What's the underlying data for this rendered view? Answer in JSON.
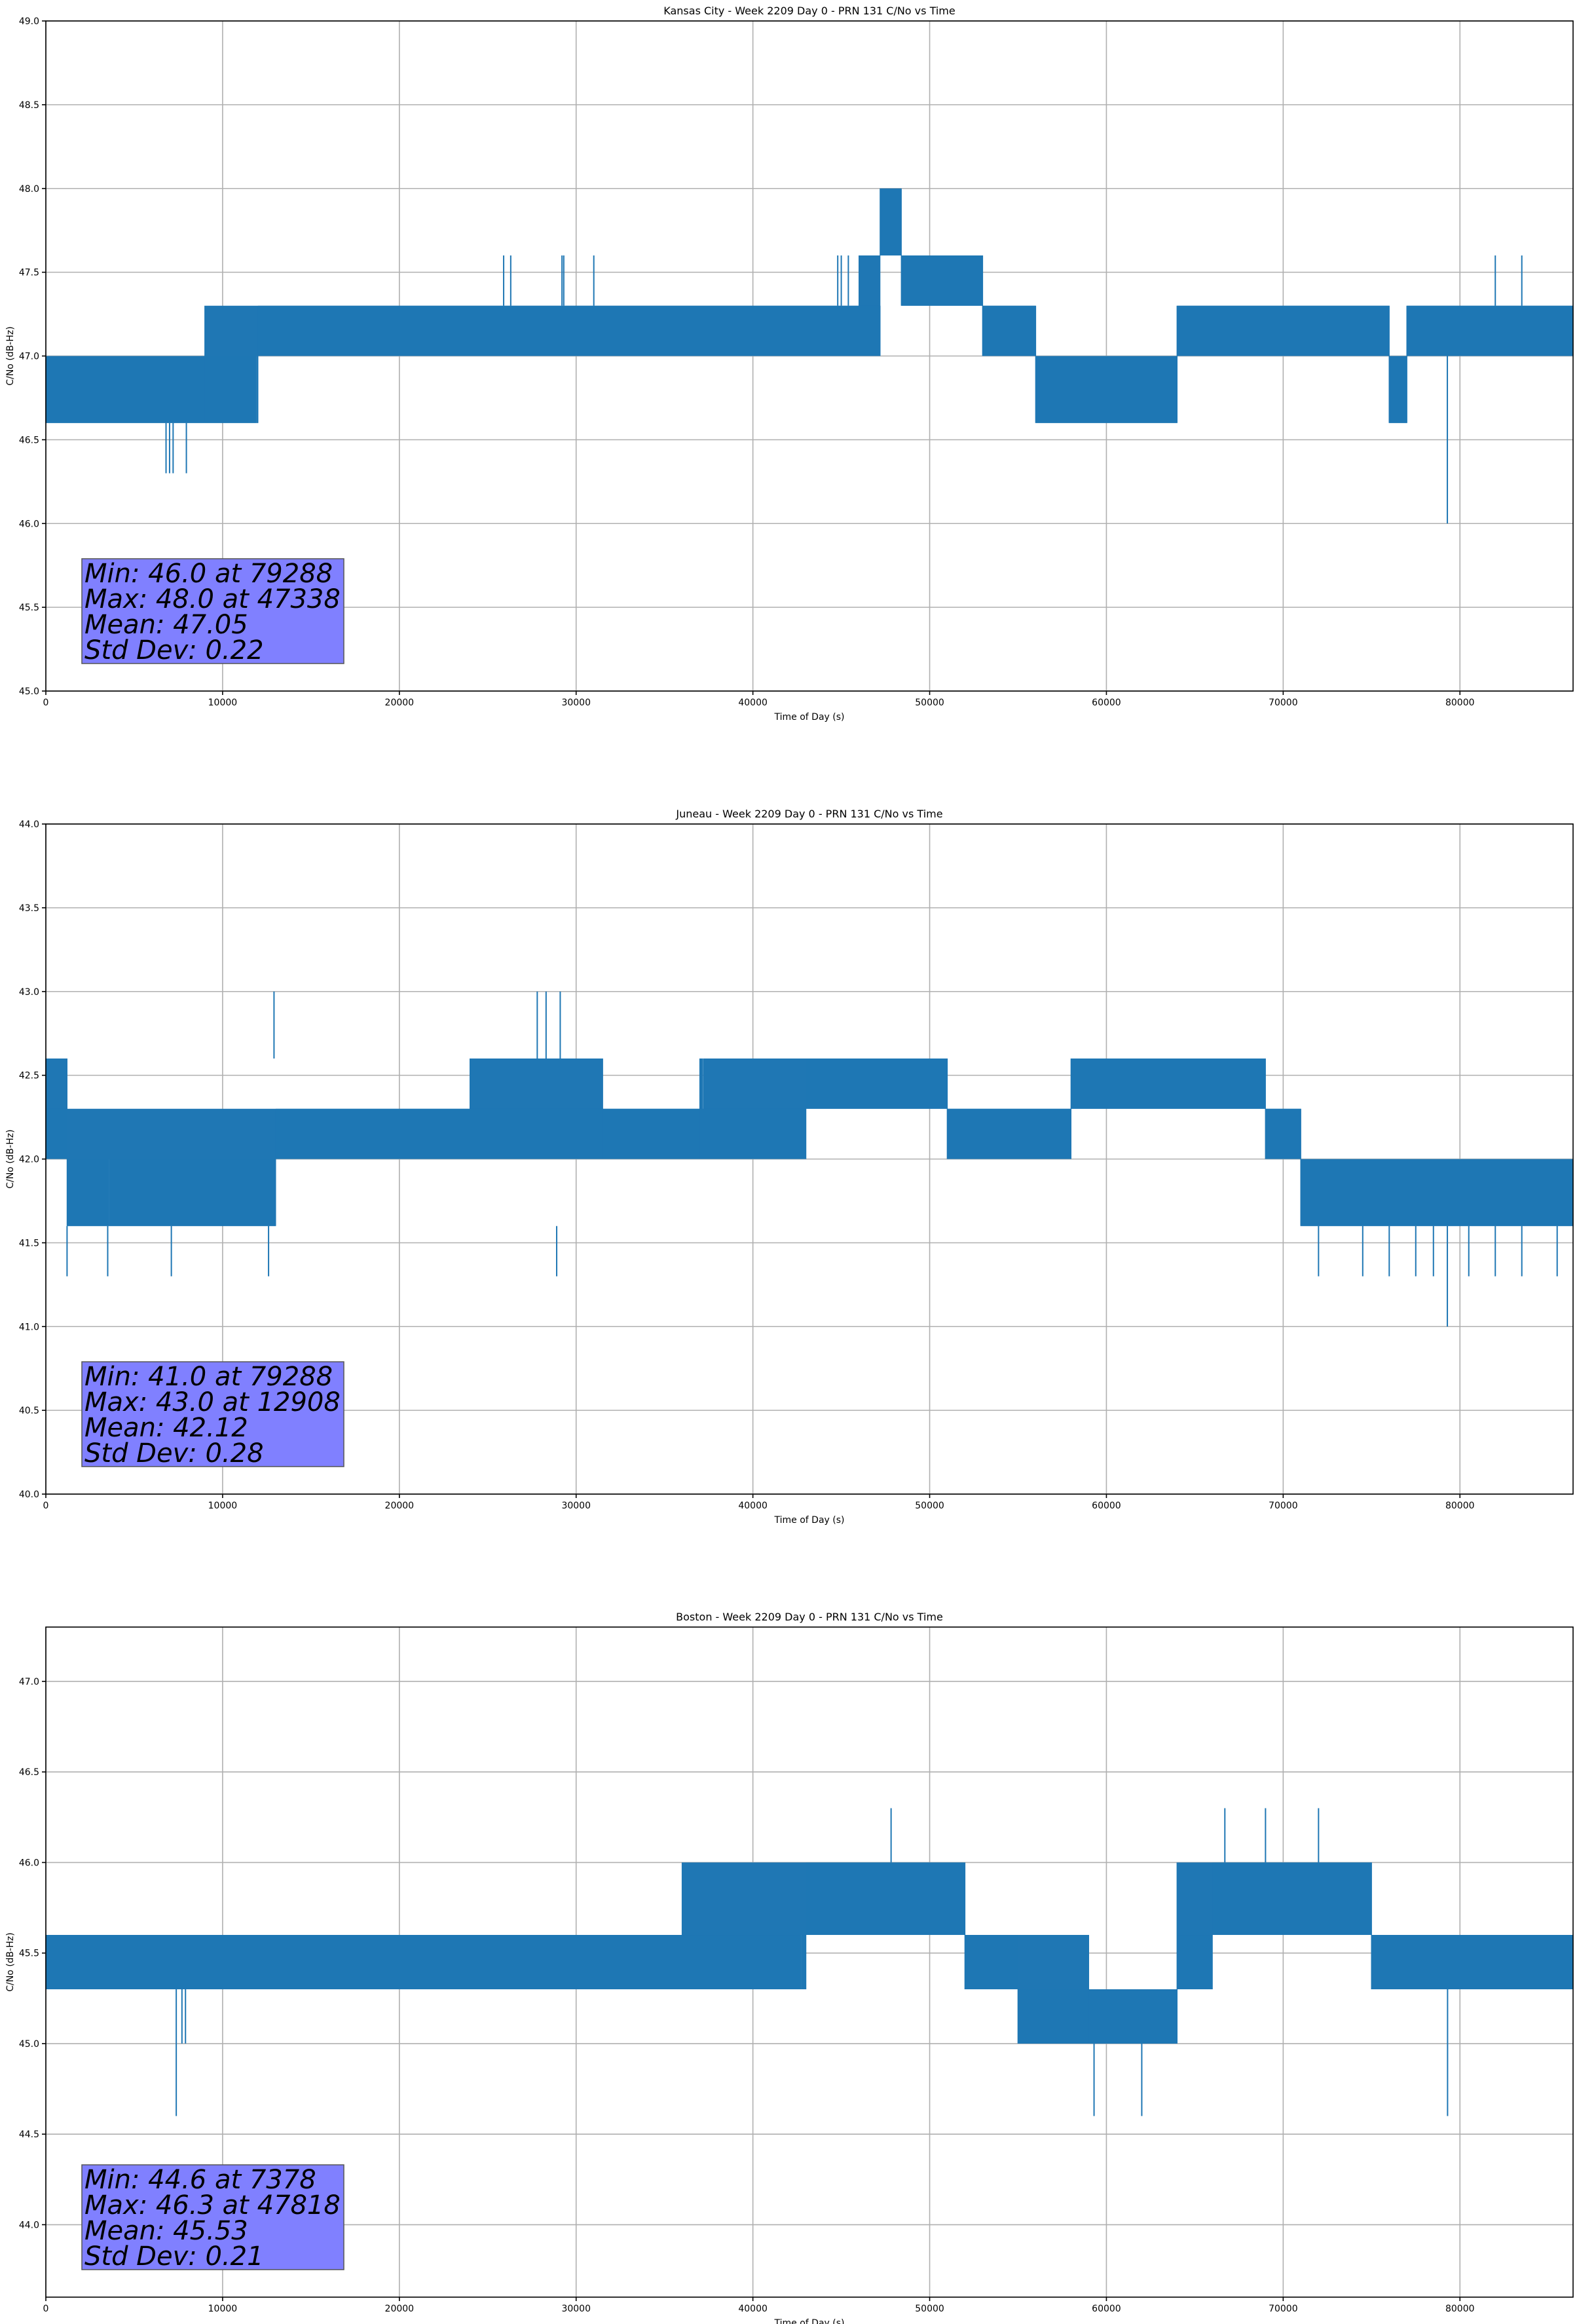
{
  "chart_data": [
    {
      "type": "line",
      "title": "Kansas City - Week 2209 Day 0 - PRN 131 C/No vs Time",
      "xlabel": "Time of Day (s)",
      "ylabel": "C/No (dB-Hz)",
      "xlim": [
        0,
        86400
      ],
      "ylim": [
        45.0,
        49.0
      ],
      "xticks": [
        0,
        10000,
        20000,
        30000,
        40000,
        50000,
        60000,
        70000,
        80000
      ],
      "yticks": [
        45.0,
        45.5,
        46.0,
        46.5,
        47.0,
        47.5,
        48.0,
        48.5,
        49.0
      ],
      "grid": true,
      "series_color": "#1f77b4",
      "stats_box_color": "#8080ff",
      "stats": [
        "Min: 46.0 at 79288",
        "Max: 48.0 at 47338",
        "Mean: 47.05",
        "Std Dev: 0.22"
      ],
      "segments": [
        {
          "x": [
            0,
            9000
          ],
          "levels": [
            46.6,
            47.0
          ]
        },
        {
          "x": [
            9000,
            12000
          ],
          "levels": [
            46.6,
            47.0,
            47.3
          ]
        },
        {
          "x": [
            12000,
            30000
          ],
          "levels": [
            47.0,
            47.3
          ]
        },
        {
          "x": [
            30000,
            46000
          ],
          "levels": [
            47.0,
            47.3
          ]
        },
        {
          "x": [
            46000,
            47200
          ],
          "levels": [
            47.0,
            47.3,
            47.6
          ]
        },
        {
          "x": [
            47200,
            48400
          ],
          "levels": [
            47.6,
            48.0
          ]
        },
        {
          "x": [
            48400,
            53000
          ],
          "levels": [
            47.3,
            47.6
          ]
        },
        {
          "x": [
            53000,
            56000
          ],
          "levels": [
            47.0,
            47.3
          ]
        },
        {
          "x": [
            56000,
            64000
          ],
          "levels": [
            46.6,
            47.0
          ]
        },
        {
          "x": [
            64000,
            76000
          ],
          "levels": [
            47.0,
            47.3
          ]
        },
        {
          "x": [
            76000,
            77000
          ],
          "levels": [
            46.6,
            47.0
          ]
        },
        {
          "x": [
            77000,
            86400
          ],
          "levels": [
            47.0,
            47.3
          ]
        }
      ],
      "spikes": [
        {
          "x": 6800,
          "low": 46.3,
          "high": 46.6
        },
        {
          "x": 7000,
          "low": 46.3,
          "high": 46.6
        },
        {
          "x": 7200,
          "low": 46.3,
          "high": 46.6
        },
        {
          "x": 7950,
          "low": 46.3,
          "high": 46.6
        },
        {
          "x": 25900,
          "low": 47.3,
          "high": 47.6
        },
        {
          "x": 26300,
          "low": 47.3,
          "high": 47.6
        },
        {
          "x": 29200,
          "low": 47.3,
          "high": 47.6
        },
        {
          "x": 29300,
          "low": 47.3,
          "high": 47.6
        },
        {
          "x": 31000,
          "low": 47.3,
          "high": 47.6
        },
        {
          "x": 44800,
          "low": 47.3,
          "high": 47.6
        },
        {
          "x": 45000,
          "low": 47.3,
          "high": 47.6
        },
        {
          "x": 45400,
          "low": 47.3,
          "high": 47.6
        },
        {
          "x": 79288,
          "low": 46.0,
          "high": 47.0
        },
        {
          "x": 82000,
          "low": 47.3,
          "high": 47.6
        },
        {
          "x": 83500,
          "low": 47.3,
          "high": 47.6
        }
      ]
    },
    {
      "type": "line",
      "title": "Juneau - Week 2209 Day 0 - PRN 131 C/No vs Time",
      "xlabel": "Time of Day (s)",
      "ylabel": "C/No (dB-Hz)",
      "xlim": [
        0,
        86400
      ],
      "ylim": [
        40.0,
        44.0
      ],
      "xticks": [
        0,
        10000,
        20000,
        30000,
        40000,
        50000,
        60000,
        70000,
        80000
      ],
      "yticks": [
        40.0,
        40.5,
        41.0,
        41.5,
        42.0,
        42.5,
        43.0,
        43.5,
        44.0
      ],
      "grid": true,
      "series_color": "#1f77b4",
      "stats_box_color": "#8080ff",
      "stats": [
        "Min: 41.0 at 79288",
        "Max: 43.0 at 12908",
        "Mean: 42.12",
        "Std Dev: 0.28"
      ],
      "segments": [
        {
          "x": [
            0,
            1200
          ],
          "levels": [
            42.0,
            42.3,
            42.6
          ]
        },
        {
          "x": [
            1200,
            13000
          ],
          "levels": [
            41.6,
            42.0,
            42.3
          ]
        },
        {
          "x": [
            13000,
            24000
          ],
          "levels": [
            42.0,
            42.3
          ]
        },
        {
          "x": [
            24000,
            31500
          ],
          "levels": [
            42.0,
            42.3,
            42.6
          ]
        },
        {
          "x": [
            31500,
            37000
          ],
          "levels": [
            42.0,
            42.3
          ]
        },
        {
          "x": [
            37000,
            43000
          ],
          "levels": [
            42.0,
            42.3,
            42.6
          ]
        },
        {
          "x": [
            43000,
            51000
          ],
          "levels": [
            42.3,
            42.6
          ]
        },
        {
          "x": [
            51000,
            58000
          ],
          "levels": [
            42.0,
            42.3
          ]
        },
        {
          "x": [
            58000,
            69000
          ],
          "levels": [
            42.3,
            42.6
          ]
        },
        {
          "x": [
            69000,
            71000
          ],
          "levels": [
            42.0,
            42.3
          ]
        },
        {
          "x": [
            71000,
            86400
          ],
          "levels": [
            41.6,
            42.0
          ]
        }
      ],
      "spikes": [
        {
          "x": 1200,
          "low": 41.3,
          "high": 41.6
        },
        {
          "x": 3500,
          "low": 41.3,
          "high": 41.6
        },
        {
          "x": 7100,
          "low": 41.3,
          "high": 41.6
        },
        {
          "x": 12600,
          "low": 41.3,
          "high": 41.6
        },
        {
          "x": 12908,
          "low": 42.6,
          "high": 43.0
        },
        {
          "x": 27800,
          "low": 42.6,
          "high": 43.0
        },
        {
          "x": 28300,
          "low": 42.6,
          "high": 43.0
        },
        {
          "x": 28900,
          "low": 41.3,
          "high": 41.6
        },
        {
          "x": 29100,
          "low": 42.6,
          "high": 43.0
        },
        {
          "x": 72000,
          "low": 41.3,
          "high": 41.6
        },
        {
          "x": 74500,
          "low": 41.3,
          "high": 41.6
        },
        {
          "x": 76000,
          "low": 41.3,
          "high": 41.6
        },
        {
          "x": 77500,
          "low": 41.3,
          "high": 41.6
        },
        {
          "x": 78500,
          "low": 41.3,
          "high": 41.6
        },
        {
          "x": 79288,
          "low": 41.0,
          "high": 41.6
        },
        {
          "x": 80500,
          "low": 41.3,
          "high": 41.6
        },
        {
          "x": 82000,
          "low": 41.3,
          "high": 41.6
        },
        {
          "x": 83500,
          "low": 41.3,
          "high": 41.6
        },
        {
          "x": 85500,
          "low": 41.3,
          "high": 41.6
        }
      ]
    },
    {
      "type": "line",
      "title": "Boston - Week 2209 Day 0 - PRN 131 C/No vs Time",
      "xlabel": "Time of Day (s)",
      "ylabel": "C/No (dB-Hz)",
      "xlim": [
        0,
        86400
      ],
      "ylim": [
        43.6,
        47.3
      ],
      "xticks": [
        0,
        10000,
        20000,
        30000,
        40000,
        50000,
        60000,
        70000,
        80000
      ],
      "yticks": [
        44.0,
        44.5,
        45.0,
        45.5,
        46.0,
        46.5,
        47.0
      ],
      "grid": true,
      "series_color": "#1f77b4",
      "stats_box_color": "#8080ff",
      "stats": [
        "Min: 44.6 at 7378",
        "Max: 46.3 at 47818",
        "Mean: 45.53",
        "Std Dev: 0.21"
      ],
      "segments": [
        {
          "x": [
            0,
            36000
          ],
          "levels": [
            45.3,
            45.6
          ]
        },
        {
          "x": [
            36000,
            43000
          ],
          "levels": [
            45.3,
            45.6,
            46.0
          ]
        },
        {
          "x": [
            43000,
            52000
          ],
          "levels": [
            45.6,
            46.0
          ]
        },
        {
          "x": [
            52000,
            55000
          ],
          "levels": [
            45.3,
            45.6
          ]
        },
        {
          "x": [
            55000,
            59000
          ],
          "levels": [
            45.0,
            45.3,
            45.6
          ]
        },
        {
          "x": [
            59000,
            64000
          ],
          "levels": [
            45.0,
            45.3
          ]
        },
        {
          "x": [
            64000,
            66000
          ],
          "levels": [
            45.3,
            45.6,
            46.0
          ]
        },
        {
          "x": [
            66000,
            75000
          ],
          "levels": [
            45.6,
            46.0
          ]
        },
        {
          "x": [
            75000,
            86400
          ],
          "levels": [
            45.3,
            45.6
          ]
        }
      ],
      "spikes": [
        {
          "x": 7378,
          "low": 44.6,
          "high": 45.3
        },
        {
          "x": 7700,
          "low": 45.0,
          "high": 45.3
        },
        {
          "x": 7900,
          "low": 45.0,
          "high": 45.3
        },
        {
          "x": 47818,
          "low": 46.0,
          "high": 46.3
        },
        {
          "x": 59300,
          "low": 44.6,
          "high": 45.0
        },
        {
          "x": 62000,
          "low": 44.6,
          "high": 45.0
        },
        {
          "x": 66700,
          "low": 46.0,
          "high": 46.3
        },
        {
          "x": 69000,
          "low": 46.0,
          "high": 46.3
        },
        {
          "x": 72000,
          "low": 46.0,
          "high": 46.3
        },
        {
          "x": 79300,
          "low": 44.6,
          "high": 45.3
        }
      ]
    }
  ]
}
